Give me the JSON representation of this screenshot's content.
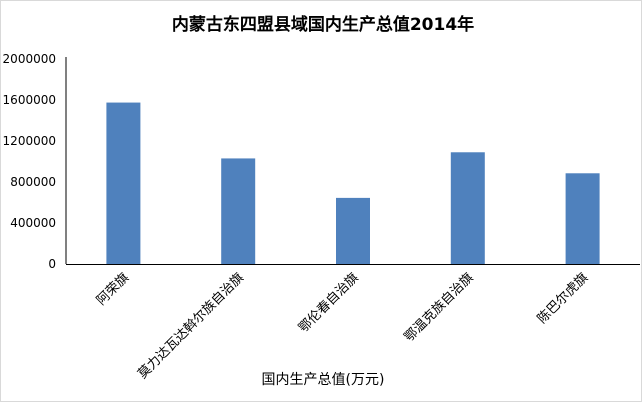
{
  "chart_data": {
    "type": "bar",
    "title": "内蒙古东四盟县域国内生产总值2014年",
    "xlabel": "国内生产总值(万元)",
    "ylabel": "",
    "categories": [
      "阿荣旗",
      "莫力达瓦达斡尔族自治旗",
      "鄂伦春自治旗",
      "鄂温克族自治旗",
      "陈巴尔虎旗"
    ],
    "values": [
      1575000,
      1030000,
      645000,
      1090000,
      885000
    ],
    "ylim": [
      0,
      2000000
    ],
    "yticks": [
      0,
      400000,
      800000,
      1200000,
      1600000,
      2000000
    ],
    "grid": false,
    "bar_color": "#4f81bd",
    "axis_color": "#000000"
  }
}
